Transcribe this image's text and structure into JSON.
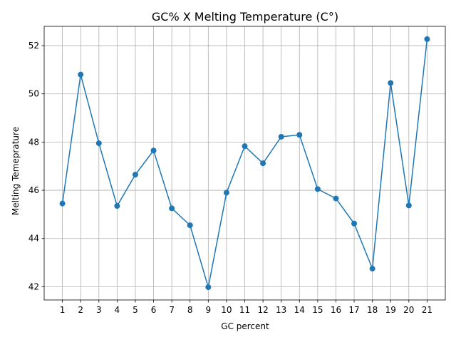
{
  "chart_data": {
    "type": "line",
    "title": "GC% X Melting Temperature (C°)",
    "xlabel": "GC percent",
    "ylabel": "Melting Temeprature",
    "x": [
      1,
      2,
      3,
      4,
      5,
      6,
      7,
      8,
      9,
      10,
      11,
      12,
      13,
      14,
      15,
      16,
      17,
      18,
      19,
      20,
      21
    ],
    "y": [
      45.45,
      50.8,
      47.95,
      45.35,
      46.65,
      47.65,
      45.25,
      44.55,
      41.98,
      45.9,
      47.83,
      47.12,
      48.22,
      48.3,
      46.05,
      45.66,
      44.62,
      42.75,
      50.45,
      45.37,
      52.27
    ],
    "yticks": [
      42,
      44,
      46,
      48,
      50,
      52
    ],
    "xlim": [
      0.0,
      22.0
    ],
    "ylim": [
      41.45,
      52.8
    ],
    "grid": true,
    "line_color": "#1f77b4",
    "marker": "circle"
  }
}
